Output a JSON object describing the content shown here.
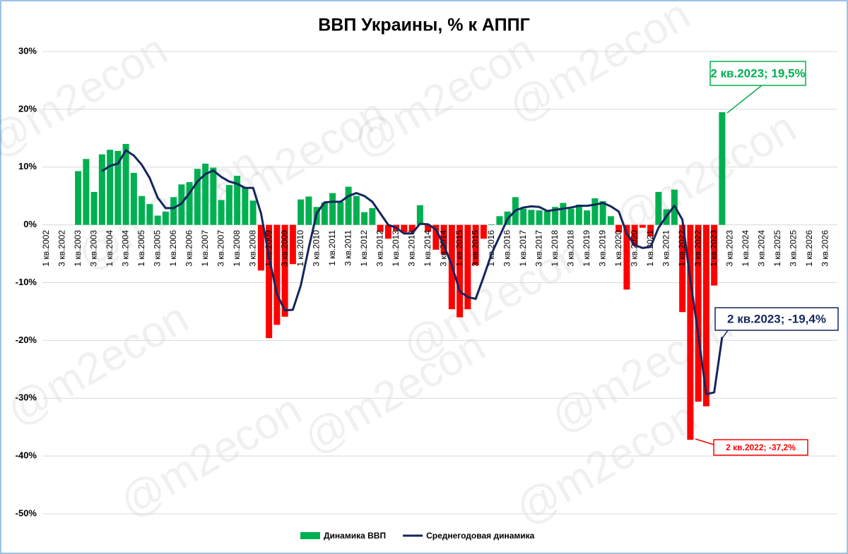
{
  "chart_data": {
    "type": "bar_line",
    "title": "ВВП Украины, % к АППГ",
    "watermark": "@m2econ",
    "categories": [
      "1 кв.2002",
      null,
      "3 кв.2002",
      null,
      "1 кв.2003",
      null,
      "3 кв.2003",
      null,
      "1 кв.2004",
      null,
      "3 кв.2004",
      null,
      "1 кв.2005",
      null,
      "3 кв.2005",
      null,
      "1 кв.2006",
      null,
      "3 кв.2006",
      null,
      "1 кв.2007",
      null,
      "3 кв.2007",
      null,
      "1 кв.2008",
      null,
      "3 кв.2008",
      null,
      "1 кв.2009",
      null,
      "3 кв.2009",
      null,
      "1 кв.2010",
      null,
      "3 кв.2010",
      null,
      "1 кв.2011",
      null,
      "3 кв.2011",
      null,
      "1 кв.2012",
      null,
      "3 кв.2012",
      null,
      "1 кв.2013",
      null,
      "3 кв.2013",
      null,
      "1 кв.2014",
      null,
      "3 кв.2014",
      null,
      "1 кв.2015",
      null,
      "3 кв.2015",
      null,
      "1 кв.2016",
      null,
      "3 кв.2016",
      null,
      "1 кв.2017",
      null,
      "3 кв.2017",
      null,
      "1 кв.2018",
      null,
      "3 кв.2018",
      null,
      "1 кв.2019",
      null,
      "3 кв.2019",
      null,
      "1 кв.2020",
      null,
      "3 кв.2020",
      null,
      "1 кв.2021",
      null,
      "3 кв.2021",
      null,
      "1 кв.2022",
      null,
      "3 кв.2022",
      null,
      "1 кв.2023",
      null,
      "3 кв.2023",
      null,
      "1 кв.2024",
      null,
      "3 кв.2024",
      null,
      "1 кв.2025",
      null,
      "3 кв.2025",
      null,
      "1 кв.2026",
      null,
      "3 кв.2026",
      null
    ],
    "series": [
      {
        "name": "Динамика ВВП",
        "type": "bar",
        "color": "#00b050",
        "negative_color": "#ff0000",
        "values": [
          null,
          null,
          null,
          null,
          9.3,
          11.4,
          5.7,
          12.2,
          13.0,
          12.8,
          14.0,
          9.0,
          5.0,
          3.6,
          1.6,
          2.3,
          4.8,
          7.0,
          7.4,
          9.7,
          10.6,
          9.9,
          4.3,
          6.9,
          8.5,
          6.5,
          4.2,
          -7.9,
          -19.6,
          -17.3,
          -15.9,
          -6.8,
          4.4,
          4.9,
          3.1,
          3.9,
          5.5,
          4.0,
          6.6,
          5.0,
          2.2,
          2.9,
          -1.2,
          -2.4,
          -1.0,
          -1.3,
          -1.2,
          3.4,
          -1.2,
          -4.3,
          -5.1,
          -14.6,
          -16.0,
          -14.6,
          -7.0,
          -2.4,
          0.1,
          1.5,
          2.3,
          4.8,
          2.8,
          2.6,
          2.5,
          2.4,
          3.1,
          3.8,
          2.8,
          3.5,
          2.5,
          4.6,
          4.1,
          1.5,
          -1.3,
          -11.2,
          -3.5,
          -0.5,
          -2.0,
          5.7,
          2.7,
          6.1,
          -15.1,
          -37.2,
          -30.6,
          -31.4,
          -10.5,
          19.5,
          null,
          null,
          null,
          null,
          null,
          null,
          null,
          null,
          null,
          null,
          null,
          null,
          null,
          null
        ]
      },
      {
        "name": "Среднегодовая динамика",
        "type": "line",
        "color": "#14265e",
        "values": [
          null,
          null,
          null,
          null,
          null,
          null,
          null,
          9.3,
          10.2,
          10.6,
          12.9,
          12.0,
          10.4,
          8.1,
          4.7,
          2.9,
          2.9,
          3.7,
          5.5,
          7.5,
          8.8,
          9.4,
          8.3,
          7.5,
          7.1,
          6.4,
          6.4,
          2.0,
          -5.5,
          -12.0,
          -14.8,
          -14.7,
          -10.5,
          -4.0,
          2.0,
          3.9,
          4.0,
          4.0,
          5.0,
          5.5,
          5.0,
          4.0,
          2.0,
          0.0,
          -0.5,
          -1.5,
          -1.5,
          0.2,
          0.1,
          -0.8,
          -3.5,
          -7.0,
          -11.5,
          -12.5,
          -12.8,
          -9.0,
          -5.0,
          -2.0,
          1.0,
          2.5,
          3.0,
          3.2,
          3.1,
          2.4,
          2.6,
          2.8,
          3.0,
          3.3,
          3.3,
          3.5,
          3.8,
          3.2,
          2.3,
          -1.5,
          -3.5,
          -4.0,
          -3.8,
          -0.5,
          1.5,
          3.3,
          0.9,
          -9.5,
          -19.0,
          -29.3,
          -29.0,
          -19.4,
          null,
          null,
          null,
          null,
          null,
          null,
          null,
          null,
          null,
          null,
          null,
          null,
          null,
          null
        ]
      }
    ],
    "ylim": [
      -50,
      30
    ],
    "yticks": [
      {
        "value": -50,
        "label": "-50%"
      },
      {
        "value": -40,
        "label": "-40%"
      },
      {
        "value": -30,
        "label": "-30%"
      },
      {
        "value": -20,
        "label": "-20%"
      },
      {
        "value": -10,
        "label": "-10%"
      },
      {
        "value": 0,
        "label": "0%"
      },
      {
        "value": 10,
        "label": "10%"
      },
      {
        "value": 20,
        "label": "20%"
      },
      {
        "value": 30,
        "label": "30%"
      }
    ],
    "grid": true,
    "legend": "bottom",
    "annotations": [
      {
        "text": "2 кв.2023; 19,5%",
        "color": "#00b050"
      },
      {
        "text": "2 кв.2023; -19,4%",
        "color": "#14265e"
      },
      {
        "text": "2 кв.2022; -37,2%",
        "color": "#ff0000"
      }
    ]
  }
}
